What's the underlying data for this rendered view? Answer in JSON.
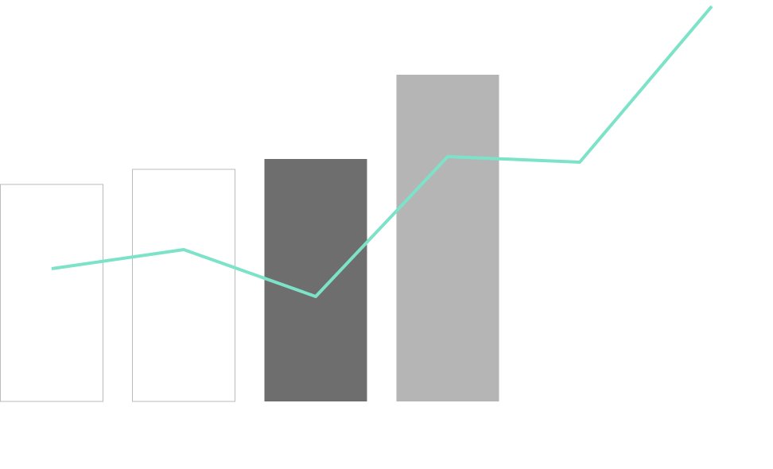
{
  "chart_data": {
    "type": "combo",
    "categories": [
      null,
      null,
      null,
      null,
      null,
      null
    ],
    "ylim": [
      0,
      505
    ],
    "series": [
      {
        "type": "bar",
        "values": [
          273,
          292,
          305,
          411,
          null,
          null
        ],
        "fill_colors": [
          null,
          null,
          "#6e6e6e",
          "#b5b5b5"
        ],
        "stroke_colors": [
          "#bbbbbb",
          "#bbbbbb",
          null,
          null
        ]
      },
      {
        "type": "line",
        "color": "#7de3c8",
        "values": [
          167,
          191,
          132,
          308,
          301,
          497
        ]
      }
    ]
  }
}
